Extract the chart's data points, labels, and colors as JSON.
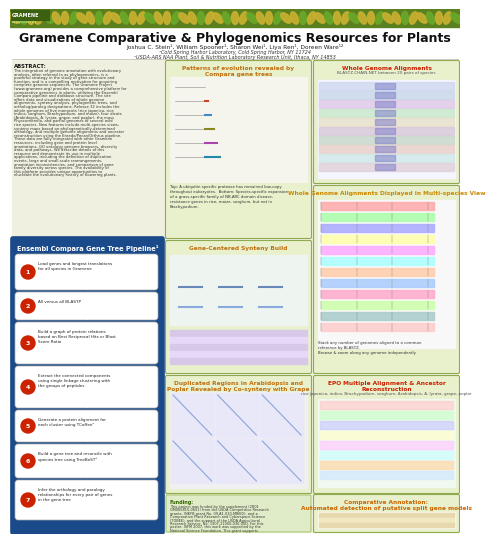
{
  "title": "Gramene Comparative & Phylogenomics Resources for Plants",
  "authors": "Joshua C. Stein¹, William Spooner¹, Sharon Wei¹, Liya Ren¹, Doreen Ware¹²",
  "affil1": "¹Cold Spring Harbor Laboratory, Cold Spring Harbor, NY 11724",
  "affil2": "²USDA-ARS NAA Plant, Soil & Nutrition Laboratory Research Unit, Ithaca, NY 14853",
  "abstract_title": "ABSTRACT:",
  "abstract_text": "The integration of genome annotation with evolutionary analysis, often referred to as phylogenomics, is a powerful strategy in the study of gene structure and function, and is a compelling motivation for acquiring complete genome sequences. The Gramene Project (www.gramene.org) provides a comprehensive platform for comparative genomics in plants, utilizing the Ensembl Compara pipeline and database structure. The site offers data and visualizations of whole genome alignments, synteny analysis, phylogenetic trees, and ortholog/paralog designations. Release 32 includes the whole genomes of five monocots (rice japonica, rice indica, sorghum, Brachypodium, and maize), four dicots (Arabidopsis, A. lyrata, grape, and poplar), the moss Physcomitrella, and partial genomes of several wild rice species. New features include multi-species views, synteny maps based on phylogenetically-determined orthology, and multiple genome alignments and ancestor reconstruction using the Enredo/Pecan/Orthrus pipeline. These data are fully integrated with other Gramene resources, including gene and protein level annotations, GO ontology genome browsers, diversity data, and pathways. We describe details of this resource and demonstrate its use in multiple applications, including the definition of duplication events, large and small-scale rearrangements, annotation inconsistencies, and comparison of gene family diversity across species. The availability of this platform provides unique opportunities to elucidate the evolutionary history of flowering plants.",
  "pipeline_title": "Ensembl Compara Gene Tree Pipeline¹",
  "pipeline_steps": [
    "Load genes and longest translations\nfor all species in Gramene",
    "All versus all BLASTP",
    "Build a graph of protein relations\nbased on Best Reciprocal Hits or Blast\nScore Ratio",
    "Extract the connected components\nusing single linkage clustering with\nthe groups of peptides",
    "Generate a protein alignment for\neach cluster using TCoffee²",
    "Build a gene tree and reconcile with\nspecies tree using TreeBeST³",
    "Infer the orthology and paralogy\nrelationships for every pair of genes\nin the gene tree"
  ],
  "pipeline_bg": "#1a4a8a",
  "pipeline_title_bg": "#1a4a8a",
  "panel1_title": "Patterns of evolution revealed by\nCompara gene trees",
  "panel2_title": "Gene-Centered Synteny Build",
  "panel3_title": "Duplicated Regions in Arabidopsis and\nPoplar Revealed by Co-synteny with Grape",
  "panel4_title": "Whole Genome Alignments",
  "panel4_subtitle": "BLASTZ-CHAIN-NET between 20 pairs of species",
  "panel5_title": "Whole Genome Alignments Displayed in Multi-species View",
  "panel6_title": "EPO Multiple Alignment & Ancestor\nReconstruction",
  "panel6_subtitle": "rice japonica, indica, Brachypodium, sorghum, Arabidopsis, A. lyrata, grape, poplar",
  "panel7_title": "Comparative Annotation:\nAutomated detection of putative split gene models",
  "funding_title": "Funding:",
  "funding_text": "This project was funded by the supplement (2R01 GM065815-06S1) from the USDA Competitive Research grants, (NKFB grant No. 09.A1-030-MBB/2), and a Comparative Plant Research and Cyberspace Science (TOBEE), and the support of the USDA Agricultural Research Service. No. 1907-21000-030-00D. For this poster, ISFM 2007, this work was supported by the National Science Foundation. This grant supports development of the Gramene Genomic Resource and is funded by NSF grant: Genome Science & Bioscience grant award #0703908",
  "header_green": "#5a8020",
  "leaf_gold": "#c8b030",
  "leaf_green": "#6aa828",
  "panel_bg": "#e8f0cc",
  "panel_border": "#90aa50",
  "panel1_title_color": "#c07010",
  "panel2_title_color": "#c07010",
  "panel3_title_color": "#c07010",
  "panel4_title_color": "#cc2000",
  "panel5_title_color": "#cc8800",
  "panel6_title_color": "#cc2000",
  "panel7_title_color": "#cc6600",
  "funding_bg": "#e0ecc8",
  "body_bg": "#f0f0e0"
}
